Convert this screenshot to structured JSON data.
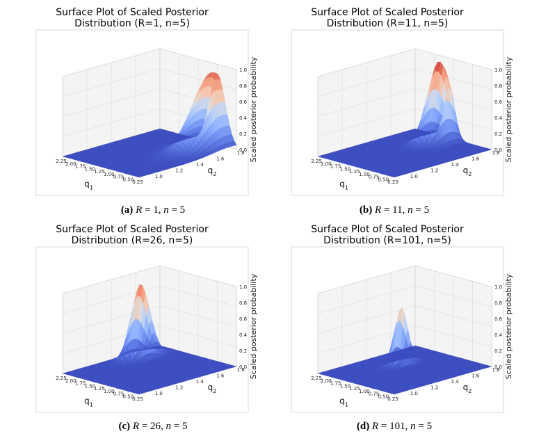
{
  "chart_data": [
    {
      "type": "surface",
      "title_lines": [
        "Surface Plot of Scaled Posterior",
        "Distribution (R=1, n=5)"
      ],
      "caption": {
        "label": "(a)",
        "r": "1",
        "n": "5"
      },
      "xlabel": "q",
      "xlabel_sub": "1",
      "ylabel": "q",
      "ylabel_sub": "2",
      "zlabel": "Scaled posterior probability",
      "x_ticks": [
        "0.25",
        "0.50",
        "0.75",
        "1.00",
        "1.25",
        "1.50",
        "1.75",
        "2.00",
        "2.25"
      ],
      "y_ticks": [
        "1.0",
        "1.2",
        "1.4",
        "1.6",
        "1.8"
      ],
      "z_ticks": [
        "0.0",
        "0.2",
        "0.4",
        "0.6",
        "0.8",
        "1.0"
      ],
      "xlim": [
        0.25,
        2.25
      ],
      "ylim": [
        0.9,
        1.85
      ],
      "zlim": [
        0,
        1
      ],
      "peak": {
        "q1": 0.75,
        "q2": 1.8,
        "height": 0.92,
        "width_q1": 0.3,
        "width_q2": 0.25
      }
    },
    {
      "type": "surface",
      "title_lines": [
        "Surface Plot of Scaled Posterior",
        "Distribution (R=11, n=5)"
      ],
      "caption": {
        "label": "(b)",
        "r": "11",
        "n": "5"
      },
      "xlabel": "q",
      "xlabel_sub": "1",
      "ylabel": "q",
      "ylabel_sub": "2",
      "zlabel": "Scaled posterior probability",
      "x_ticks": [
        "0.25",
        "0.50",
        "0.75",
        "1.00",
        "1.25",
        "1.50",
        "1.75",
        "2.00",
        "2.25"
      ],
      "y_ticks": [
        "1.0",
        "1.2",
        "1.4",
        "1.6",
        "1.8"
      ],
      "z_ticks": [
        "0.0",
        "0.2",
        "0.4",
        "0.6",
        "0.8",
        "1.0"
      ],
      "xlim": [
        0.25,
        2.25
      ],
      "ylim": [
        0.9,
        1.85
      ],
      "zlim": [
        0,
        1
      ],
      "peak": {
        "q1": 1.35,
        "q2": 1.75,
        "height": 1.0,
        "width_q1": 0.2,
        "width_q2": 0.15
      }
    },
    {
      "type": "surface",
      "title_lines": [
        "Surface Plot of Scaled Posterior",
        "Distribution (R=26, n=5)"
      ],
      "caption": {
        "label": "(c)",
        "r": "26",
        "n": "5"
      },
      "xlabel": "q",
      "xlabel_sub": "1",
      "ylabel": "q",
      "ylabel_sub": "2",
      "zlabel": "Scaled posterior probability",
      "x_ticks": [
        "0.25",
        "0.50",
        "0.75",
        "1.00",
        "1.25",
        "1.50",
        "1.75",
        "2.00",
        "2.25"
      ],
      "y_ticks": [
        "1.0",
        "1.2",
        "1.4",
        "1.6",
        "1.8"
      ],
      "z_ticks": [
        "0.0",
        "0.2",
        "0.4",
        "0.6",
        "0.8",
        "1.0"
      ],
      "xlim": [
        0.25,
        2.25
      ],
      "ylim": [
        0.9,
        1.85
      ],
      "zlim": [
        0,
        1
      ],
      "peak": {
        "q1": 1.95,
        "q2": 1.55,
        "height": 0.92,
        "width_q1": 0.15,
        "width_q2": 0.12
      }
    },
    {
      "type": "surface",
      "title_lines": [
        "Surface Plot of Scaled Posterior",
        "Distribution (R=101, n=5)"
      ],
      "caption": {
        "label": "(d)",
        "r": "101",
        "n": "5"
      },
      "xlabel": "q",
      "xlabel_sub": "1",
      "ylabel": "q",
      "ylabel_sub": "2",
      "zlabel": "Scaled posterior probability",
      "x_ticks": [
        "0.25",
        "0.50",
        "0.75",
        "1.00",
        "1.25",
        "1.50",
        "1.75",
        "2.00",
        "2.25"
      ],
      "y_ticks": [
        "1.0",
        "1.2",
        "1.4",
        "1.6",
        "1.8"
      ],
      "z_ticks": [
        "0.0",
        "0.2",
        "0.4",
        "0.6",
        "0.8",
        "1.0"
      ],
      "xlim": [
        0.25,
        2.25
      ],
      "ylim": [
        0.9,
        1.85
      ],
      "zlim": [
        0,
        1
      ],
      "peak": {
        "q1": 1.55,
        "q2": 1.45,
        "height": 0.72,
        "width_q1": 0.1,
        "width_q2": 0.09
      }
    }
  ],
  "colors": {
    "base": "#3b4cc0",
    "grid": "#d8d8d8",
    "pane": "#f4f4f4"
  }
}
